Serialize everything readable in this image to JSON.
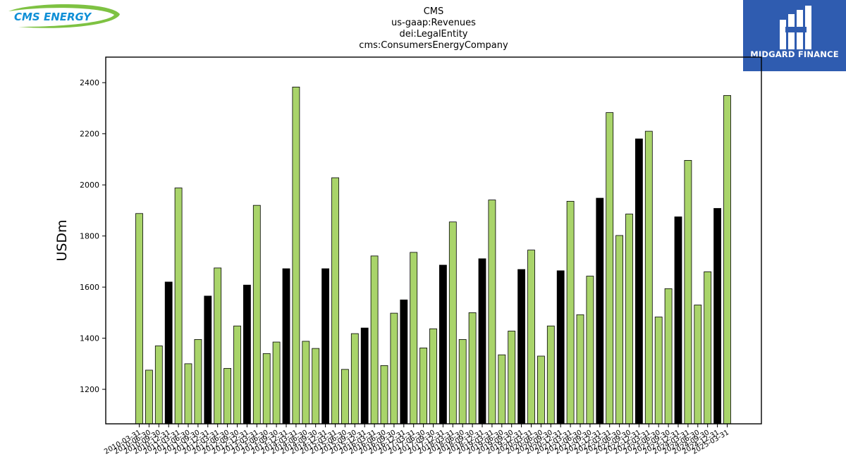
{
  "brand": {
    "left_logo_text": "CMS ENERGY",
    "right_logo_text": "MIDGARD FINANCE",
    "left_logo_color": "#0f8fd6",
    "left_swoosh_color": "#7ec242",
    "right_logo_bg": "#2f5cb0"
  },
  "chart_data": {
    "type": "bar",
    "title_lines": [
      "CMS",
      "us-gaap:Revenues",
      "dei:LegalEntity",
      "cms:ConsumersEnergyCompany"
    ],
    "xlabel": "",
    "ylabel": "USDm",
    "ylim": [
      1065,
      2500
    ],
    "yticks": [
      1200,
      1400,
      1600,
      1800,
      2000,
      2200,
      2400
    ],
    "grid": false,
    "colors": {
      "quarter": "#a9d46a",
      "annual": "#000000",
      "edge": "#000000"
    },
    "categories": [
      "2010-03-31",
      "2010-06-30",
      "2010-09-30",
      "2010-12-31",
      "2011-03-31",
      "2011-06-30",
      "2011-09-30",
      "2011-12-31",
      "2012-03-31",
      "2012-06-30",
      "2012-09-30",
      "2012-12-31",
      "2013-03-31",
      "2013-06-30",
      "2013-09-30",
      "2013-12-31",
      "2014-03-31",
      "2014-06-30",
      "2014-09-30",
      "2014-12-31",
      "2015-03-31",
      "2015-06-30",
      "2015-09-30",
      "2015-12-31",
      "2016-03-31",
      "2016-06-30",
      "2016-09-30",
      "2016-12-31",
      "2017-03-31",
      "2017-06-30",
      "2017-09-30",
      "2017-12-31",
      "2018-03-31",
      "2018-06-30",
      "2018-09-30",
      "2018-12-31",
      "2019-03-31",
      "2019-06-30",
      "2019-09-30",
      "2019-12-31",
      "2020-03-31",
      "2020-06-30",
      "2020-09-30",
      "2020-12-31",
      "2021-03-31",
      "2021-06-30",
      "2021-09-30",
      "2021-12-31",
      "2022-03-31",
      "2022-06-30",
      "2022-09-30",
      "2022-12-31",
      "2023-03-31",
      "2023-06-30",
      "2023-09-30",
      "2023-12-31",
      "2024-03-31",
      "2024-06-30",
      "2024-09-30",
      "2024-12-31",
      "2025-03-31"
    ],
    "values": [
      1888,
      1275,
      1370,
      1620,
      1988,
      1300,
      1395,
      1565,
      1675,
      1282,
      1448,
      1608,
      1920,
      1340,
      1385,
      1672,
      2383,
      1388,
      1360,
      1672,
      2028,
      1278,
      1418,
      1440,
      1722,
      1293,
      1498,
      1550,
      1736,
      1362,
      1437,
      1686,
      1855,
      1395,
      1500,
      1711,
      1941,
      1335,
      1428,
      1669,
      1745,
      1330,
      1448,
      1664,
      1936,
      1492,
      1643,
      1948,
      2283,
      1802,
      1886,
      2180,
      2210,
      1483,
      1594,
      1875,
      2096,
      1530,
      1660,
      1908,
      2350
    ],
    "annual_flags": [
      0,
      0,
      0,
      1,
      0,
      0,
      0,
      1,
      0,
      0,
      0,
      1,
      0,
      0,
      0,
      1,
      0,
      0,
      0,
      1,
      0,
      0,
      0,
      1,
      0,
      0,
      0,
      1,
      0,
      0,
      0,
      1,
      0,
      0,
      0,
      1,
      0,
      0,
      0,
      1,
      0,
      0,
      0,
      1,
      0,
      0,
      0,
      1,
      0,
      0,
      0,
      1,
      0,
      0,
      0,
      1,
      0,
      0,
      0,
      1,
      0
    ]
  }
}
